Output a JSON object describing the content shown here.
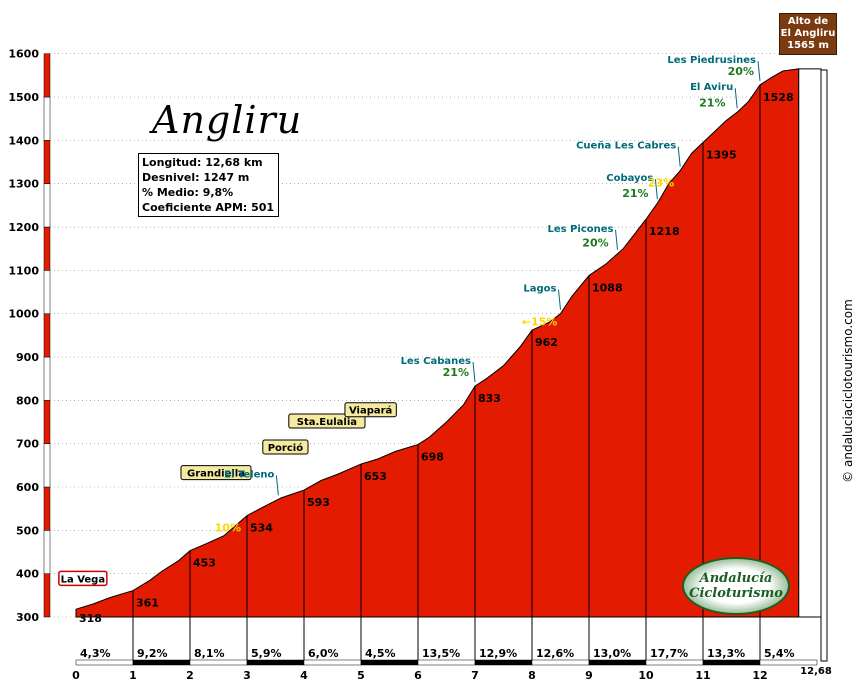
{
  "title": "Angliru",
  "stats": {
    "length": "Longitud: 12,68 km",
    "gain": "Desnivel: 1247 m",
    "average": "% Medio: 9,8%",
    "coefficient": "Coeficiente APM: 501"
  },
  "summit": {
    "line1": "Alto de",
    "line2": "El Angliru",
    "line3": "1565 m"
  },
  "website": "© andaluciaciclotourismo.com",
  "brand": {
    "line1": "Andalucía",
    "line2": "Cicloturismo"
  },
  "chart_data": {
    "type": "area",
    "ylim": [
      300,
      1600
    ],
    "xlim": [
      0,
      12.68
    ],
    "yticks": [
      300,
      400,
      500,
      600,
      700,
      800,
      900,
      1000,
      1100,
      1200,
      1300,
      1400,
      1500,
      1600
    ],
    "xticks": [
      "0",
      "1",
      "2",
      "3",
      "4",
      "5",
      "6",
      "7",
      "8",
      "9",
      "10",
      "11",
      "12"
    ],
    "x_end_label": "12,68",
    "profile": [
      [
        0.0,
        318
      ],
      [
        0.3,
        330
      ],
      [
        0.6,
        345
      ],
      [
        0.9,
        357
      ],
      [
        1.0,
        361
      ],
      [
        1.3,
        385
      ],
      [
        1.5,
        405
      ],
      [
        1.8,
        430
      ],
      [
        2.0,
        453
      ],
      [
        2.3,
        470
      ],
      [
        2.6,
        488
      ],
      [
        3.0,
        534
      ],
      [
        3.3,
        555
      ],
      [
        3.6,
        575
      ],
      [
        4.0,
        593
      ],
      [
        4.3,
        615
      ],
      [
        4.6,
        630
      ],
      [
        5.0,
        653
      ],
      [
        5.3,
        665
      ],
      [
        5.6,
        682
      ],
      [
        5.9,
        694
      ],
      [
        6.0,
        698
      ],
      [
        6.2,
        715
      ],
      [
        6.5,
        750
      ],
      [
        6.8,
        790
      ],
      [
        7.0,
        833
      ],
      [
        7.2,
        850
      ],
      [
        7.5,
        880
      ],
      [
        7.8,
        925
      ],
      [
        8.0,
        962
      ],
      [
        8.3,
        980
      ],
      [
        8.5,
        1000
      ],
      [
        8.7,
        1040
      ],
      [
        9.0,
        1088
      ],
      [
        9.3,
        1115
      ],
      [
        9.6,
        1150
      ],
      [
        10.0,
        1218
      ],
      [
        10.2,
        1255
      ],
      [
        10.4,
        1300
      ],
      [
        10.6,
        1330
      ],
      [
        10.8,
        1370
      ],
      [
        11.0,
        1395
      ],
      [
        11.2,
        1420
      ],
      [
        11.4,
        1445
      ],
      [
        11.6,
        1465
      ],
      [
        11.8,
        1490
      ],
      [
        12.0,
        1528
      ],
      [
        12.2,
        1545
      ],
      [
        12.4,
        1560
      ],
      [
        12.68,
        1565
      ]
    ],
    "km_gradients": [
      "4,3%",
      "9,2%",
      "8,1%",
      "5,9%",
      "6,0%",
      "4,5%",
      "13,5%",
      "12,9%",
      "12,6%",
      "13,0%",
      "17,7%",
      "13,3%",
      "5,4%"
    ],
    "km_elevations": [
      {
        "x": 0,
        "label": "318"
      },
      {
        "x": 1,
        "label": "361"
      },
      {
        "x": 2,
        "label": "453"
      },
      {
        "x": 3,
        "label": "534"
      },
      {
        "x": 4,
        "label": "593"
      },
      {
        "x": 5,
        "label": "653"
      },
      {
        "x": 6,
        "label": "698"
      },
      {
        "x": 7,
        "label": "833"
      },
      {
        "x": 8,
        "label": "962"
      },
      {
        "x": 9,
        "label": "1088"
      },
      {
        "x": 10,
        "label": "1218"
      },
      {
        "x": 11,
        "label": "1395"
      },
      {
        "x": 12,
        "label": "1528"
      }
    ],
    "places": [
      {
        "name": "La Vega",
        "x": 0.05,
        "style": "box"
      },
      {
        "name": "Grandiella",
        "x": 3.0,
        "style": "tag"
      },
      {
        "name": "Porció",
        "x": 4.0,
        "style": "tag"
      },
      {
        "name": "Sta.Eulalia",
        "x": 5.0,
        "style": "tag"
      },
      {
        "name": "Viapará",
        "x": 5.55,
        "style": "tag"
      },
      {
        "name": "El Teleno",
        "x": 3.55,
        "style": "teal"
      },
      {
        "name": "Les Cabanes",
        "x": 7.0,
        "style": "teal"
      },
      {
        "name": "Lagos",
        "x": 8.5,
        "style": "teal"
      },
      {
        "name": "Les Picones",
        "x": 9.5,
        "style": "teal"
      },
      {
        "name": "Cobayos",
        "x": 10.2,
        "style": "teal"
      },
      {
        "name": "Cueña Les Cabres",
        "x": 10.6,
        "style": "teal"
      },
      {
        "name": "El Aviru",
        "x": 11.6,
        "style": "teal"
      },
      {
        "name": "Les Piedrusines",
        "x": 12.0,
        "style": "teal"
      }
    ],
    "max_gradients": [
      {
        "label": "10%",
        "x": 3.0,
        "color": "#ffd700"
      },
      {
        "label": "21%",
        "x": 7.0,
        "color": "#1b7a1b"
      },
      {
        "label": "←15%",
        "x": 8.55,
        "color": "#ffd700"
      },
      {
        "label": "20%",
        "x": 9.45,
        "color": "#1b7a1b"
      },
      {
        "label": "21%",
        "x": 10.15,
        "color": "#1b7a1b"
      },
      {
        "label": "23%",
        "x": 10.6,
        "color": "#ffd700"
      },
      {
        "label": "21%",
        "x": 11.5,
        "color": "#1b7a1b"
      },
      {
        "label": "20%",
        "x": 12.0,
        "color": "#1b7a1b"
      }
    ],
    "colors": {
      "fill": "#e31b00",
      "stroke": "#000000",
      "teal": "#006b7a",
      "green": "#1b7a1b",
      "yellow": "#ffd700"
    }
  }
}
